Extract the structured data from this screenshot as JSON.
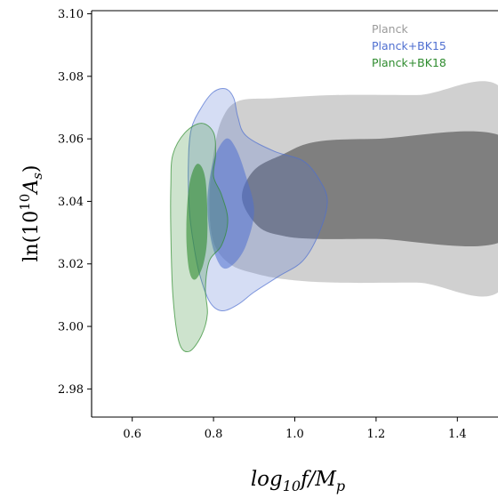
{
  "chart_data": {
    "type": "contour",
    "xlabel": "log10 f/Mp",
    "ylabel": "ln(10^10 As)",
    "xlim": [
      0.5,
      1.5
    ],
    "ylim": [
      2.971,
      3.101
    ],
    "x_ticks": [
      "0.6",
      "0.8",
      "1.0",
      "1.2",
      "1.4"
    ],
    "x_tick_values": [
      0.6,
      0.8,
      1.0,
      1.2,
      1.4
    ],
    "y_ticks": [
      "2.98",
      "3.00",
      "3.02",
      "3.04",
      "3.06",
      "3.08",
      "3.10"
    ],
    "y_tick_values": [
      2.98,
      3.0,
      3.02,
      3.04,
      3.06,
      3.08,
      3.1
    ],
    "grid": false,
    "legend_position": "top-right",
    "series": [
      {
        "name": "Planck",
        "color": "#888888",
        "outer_fill": "#c8c8c8",
        "inner_fill": "#7a7a7a",
        "contours": {
          "sigma2": [
            [
              0.86,
              3.072
            ],
            [
              0.95,
              3.073
            ],
            [
              1.1,
              3.074
            ],
            [
              1.3,
              3.074
            ],
            [
              1.52,
              3.074
            ],
            [
              1.52,
              3.014
            ],
            [
              1.3,
              3.014
            ],
            [
              1.1,
              3.014
            ],
            [
              0.98,
              3.015
            ],
            [
              0.9,
              3.017
            ],
            [
              0.84,
              3.02
            ],
            [
              0.8,
              3.027
            ],
            [
              0.79,
              3.04
            ],
            [
              0.8,
              3.055
            ],
            [
              0.82,
              3.066
            ]
          ],
          "sigma1": [
            [
              0.9,
              3.05
            ],
            [
              0.97,
              3.055
            ],
            [
              1.05,
              3.059
            ],
            [
              1.2,
              3.06
            ],
            [
              1.52,
              3.06
            ],
            [
              1.52,
              3.028
            ],
            [
              1.2,
              3.028
            ],
            [
              1.05,
              3.028
            ],
            [
              0.97,
              3.029
            ],
            [
              0.91,
              3.032
            ],
            [
              0.87,
              3.041
            ]
          ]
        }
      },
      {
        "name": "Planck+BK15",
        "color": "#4f6fd0",
        "outer_fill": "#4f6fd0",
        "inner_fill": "#4f6fd0",
        "contours": {
          "sigma2": [
            [
              0.745,
              3.063
            ],
            [
              0.77,
              3.07
            ],
            [
              0.8,
              3.075
            ],
            [
              0.83,
              3.076
            ],
            [
              0.85,
              3.073
            ],
            [
              0.86,
              3.067
            ],
            [
              0.88,
              3.061
            ],
            [
              0.95,
              3.056
            ],
            [
              1.02,
              3.053
            ],
            [
              1.06,
              3.047
            ],
            [
              1.08,
              3.04
            ],
            [
              1.06,
              3.03
            ],
            [
              1.02,
              3.021
            ],
            [
              0.96,
              3.016
            ],
            [
              0.9,
              3.011
            ],
            [
              0.86,
              3.007
            ],
            [
              0.82,
              3.005
            ],
            [
              0.79,
              3.008
            ],
            [
              0.765,
              3.017
            ],
            [
              0.75,
              3.027
            ],
            [
              0.74,
              3.038
            ],
            [
              0.738,
              3.052
            ]
          ],
          "sigma1": [
            [
              0.8,
              3.053
            ],
            [
              0.83,
              3.06
            ],
            [
              0.855,
              3.057
            ],
            [
              0.88,
              3.048
            ],
            [
              0.9,
              3.037
            ],
            [
              0.88,
              3.026
            ],
            [
              0.85,
              3.02
            ],
            [
              0.82,
              3.019
            ],
            [
              0.795,
              3.027
            ],
            [
              0.785,
              3.04
            ]
          ]
        }
      },
      {
        "name": "Planck+BK18",
        "color": "#2e8b2e",
        "outer_fill": "#2e8b2e",
        "inner_fill": "#2e8b2e",
        "contours": {
          "sigma2": [
            [
              0.7,
              3.055
            ],
            [
              0.73,
              3.062
            ],
            [
              0.77,
              3.065
            ],
            [
              0.8,
              3.062
            ],
            [
              0.805,
              3.055
            ],
            [
              0.8,
              3.048
            ],
            [
              0.82,
              3.042
            ],
            [
              0.835,
              3.034
            ],
            [
              0.82,
              3.026
            ],
            [
              0.79,
              3.021
            ],
            [
              0.78,
              3.012
            ],
            [
              0.785,
              3.004
            ],
            [
              0.77,
              2.997
            ],
            [
              0.74,
              2.992
            ],
            [
              0.715,
              2.995
            ],
            [
              0.7,
              3.01
            ],
            [
              0.695,
              3.03
            ],
            [
              0.695,
              3.045
            ]
          ],
          "sigma1": [
            [
              0.74,
              3.045
            ],
            [
              0.76,
              3.052
            ],
            [
              0.78,
              3.047
            ],
            [
              0.785,
              3.03
            ],
            [
              0.775,
              3.02
            ],
            [
              0.755,
              3.015
            ],
            [
              0.74,
              3.018
            ],
            [
              0.733,
              3.03
            ]
          ]
        }
      }
    ]
  }
}
